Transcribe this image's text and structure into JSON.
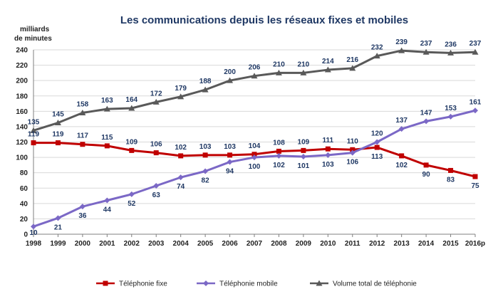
{
  "chart_data": {
    "type": "line",
    "title": "Les communications depuis les réseaux fixes et mobiles",
    "unit_lines": [
      "milliards",
      "de minutes"
    ],
    "categories": [
      "1998",
      "1999",
      "2000",
      "2001",
      "2002",
      "2003",
      "2004",
      "2005",
      "2006",
      "2007",
      "2008",
      "2009",
      "2010",
      "2011",
      "2012",
      "2013",
      "2014",
      "2015",
      "2016p"
    ],
    "ylim": [
      0,
      240
    ],
    "yticks": [
      0,
      20,
      40,
      60,
      80,
      100,
      120,
      140,
      160,
      180,
      200,
      220,
      240
    ],
    "grid": true,
    "legend_position": "bottom",
    "series": [
      {
        "name": "Téléphonie fixe",
        "color": "#c00000",
        "marker": "square",
        "values": [
          119,
          119,
          117,
          115,
          109,
          106,
          102,
          103,
          103,
          104,
          108,
          109,
          111,
          110,
          113,
          102,
          90,
          83,
          75
        ]
      },
      {
        "name": "Téléphonie mobile",
        "color": "#7b68c6",
        "marker": "diamond",
        "values": [
          10,
          21,
          36,
          44,
          52,
          63,
          74,
          82,
          94,
          100,
          102,
          101,
          103,
          106,
          120,
          137,
          147,
          153,
          161
        ]
      },
      {
        "name": "Volume total de téléphonie",
        "color": "#595959",
        "marker": "triangle",
        "values": [
          135,
          145,
          158,
          163,
          164,
          172,
          179,
          188,
          200,
          206,
          210,
          210,
          214,
          216,
          232,
          239,
          237,
          236,
          237
        ]
      }
    ]
  }
}
